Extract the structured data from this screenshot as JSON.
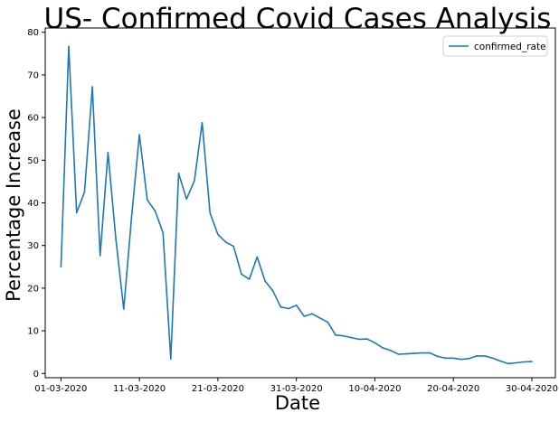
{
  "chart_data": {
    "type": "line",
    "title": "US- Confirmed Covid Cases Analysis",
    "xlabel": "Date",
    "ylabel": "Percentage Increase",
    "x_tick_labels": [
      "01-03-2020",
      "11-03-2020",
      "21-03-2020",
      "31-03-2020",
      "10-04-2020",
      "20-04-2020",
      "30-04-2020"
    ],
    "y_tick_labels": [
      "0",
      "10",
      "20",
      "30",
      "40",
      "50",
      "60",
      "70",
      "80"
    ],
    "ylim": [
      -1,
      81
    ],
    "xlim": [
      "28-02-2020",
      "03-05-2020"
    ],
    "grid": false,
    "legend": "top-right",
    "line_color": "#1f77b4",
    "series": [
      {
        "name": "confirmed_rate",
        "x": [
          "01-03-2020",
          "02-03-2020",
          "03-03-2020",
          "04-03-2020",
          "05-03-2020",
          "06-03-2020",
          "07-03-2020",
          "08-03-2020",
          "09-03-2020",
          "10-03-2020",
          "11-03-2020",
          "12-03-2020",
          "13-03-2020",
          "14-03-2020",
          "15-03-2020",
          "16-03-2020",
          "17-03-2020",
          "18-03-2020",
          "19-03-2020",
          "20-03-2020",
          "21-03-2020",
          "22-03-2020",
          "23-03-2020",
          "24-03-2020",
          "25-03-2020",
          "26-03-2020",
          "27-03-2020",
          "28-03-2020",
          "29-03-2020",
          "30-03-2020",
          "31-03-2020",
          "01-04-2020",
          "02-04-2020",
          "03-04-2020",
          "04-04-2020",
          "05-04-2020",
          "06-04-2020",
          "07-04-2020",
          "08-04-2020",
          "09-04-2020",
          "10-04-2020",
          "11-04-2020",
          "12-04-2020",
          "13-04-2020",
          "14-04-2020",
          "15-04-2020",
          "16-04-2020",
          "17-04-2020",
          "18-04-2020",
          "19-04-2020",
          "20-04-2020",
          "21-04-2020",
          "22-04-2020",
          "23-04-2020",
          "24-04-2020",
          "25-04-2020",
          "26-04-2020",
          "27-04-2020",
          "28-04-2020",
          "29-04-2020",
          "30-04-2020"
        ],
        "values": [
          25.0,
          76.7,
          37.7,
          42.5,
          67.2,
          27.6,
          51.8,
          31.5,
          15.1,
          36.5,
          56.0,
          40.7,
          38.1,
          33.0,
          3.4,
          46.9,
          40.9,
          45.2,
          58.8,
          37.6,
          32.6,
          30.8,
          29.8,
          23.3,
          22.1,
          27.3,
          21.7,
          19.4,
          15.6,
          15.2,
          16.0,
          13.4,
          14.0,
          13.0,
          12.0,
          9.0,
          8.8,
          8.4,
          8.0,
          8.1,
          7.2,
          6.0,
          5.4,
          4.5,
          4.6,
          4.7,
          4.8,
          4.8,
          4.0,
          3.6,
          3.6,
          3.3,
          3.5,
          4.1,
          4.1,
          3.6,
          2.9,
          2.3,
          2.5,
          2.7,
          2.8
        ]
      }
    ]
  }
}
